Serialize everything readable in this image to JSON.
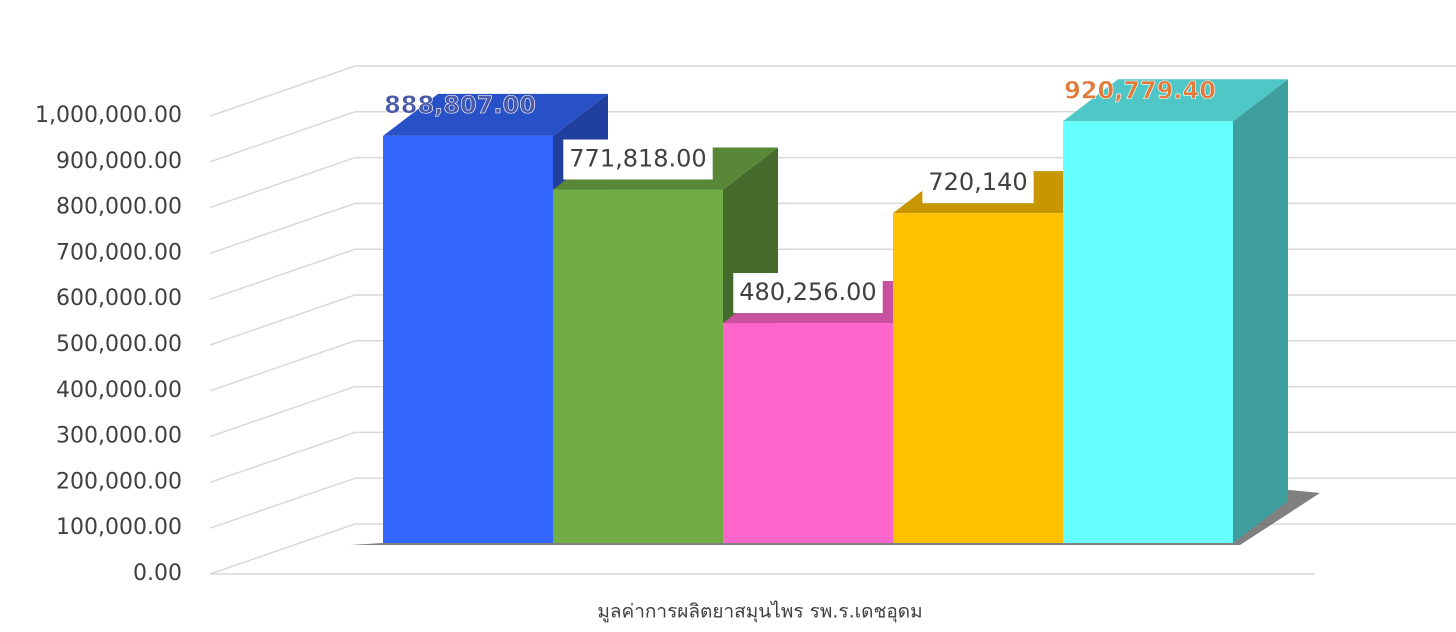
{
  "chart_data": {
    "type": "bar3d",
    "x_label": "มูลค่าการผลิตยาสมุนไพร รพ.ร.เดชอุดม",
    "ylim": [
      0,
      1000000
    ],
    "yticks": [
      {
        "value": 0,
        "label": "0.00"
      },
      {
        "value": 100000,
        "label": "100,000.00"
      },
      {
        "value": 200000,
        "label": "200,000.00"
      },
      {
        "value": 300000,
        "label": "300,000.00"
      },
      {
        "value": 400000,
        "label": "400,000.00"
      },
      {
        "value": 500000,
        "label": "500,000.00"
      },
      {
        "value": 600000,
        "label": "600,000.00"
      },
      {
        "value": 700000,
        "label": "700,000.00"
      },
      {
        "value": 800000,
        "label": "800,000.00"
      },
      {
        "value": 900000,
        "label": "900,000.00"
      },
      {
        "value": 1000000,
        "label": "1,000,000.00"
      }
    ],
    "grid": true,
    "series": [
      {
        "color": "#3366ff",
        "values": [
          888807
        ],
        "value_labels": [
          "888,807.00"
        ],
        "label_color": "#4a5aa8"
      },
      {
        "color": "#70ad47",
        "values": [
          771818
        ],
        "value_labels": [
          "771,818.00"
        ]
      },
      {
        "color": "#ff66cc",
        "values": [
          480256
        ],
        "value_labels": [
          "480,256.00"
        ]
      },
      {
        "color": "#ffc000",
        "values": [
          720140
        ],
        "value_labels": [
          "720,140"
        ]
      },
      {
        "color": "#66ffff",
        "values": [
          920779.4
        ],
        "value_labels": [
          "920,779.40"
        ],
        "label_color": "#e07b39"
      }
    ]
  }
}
